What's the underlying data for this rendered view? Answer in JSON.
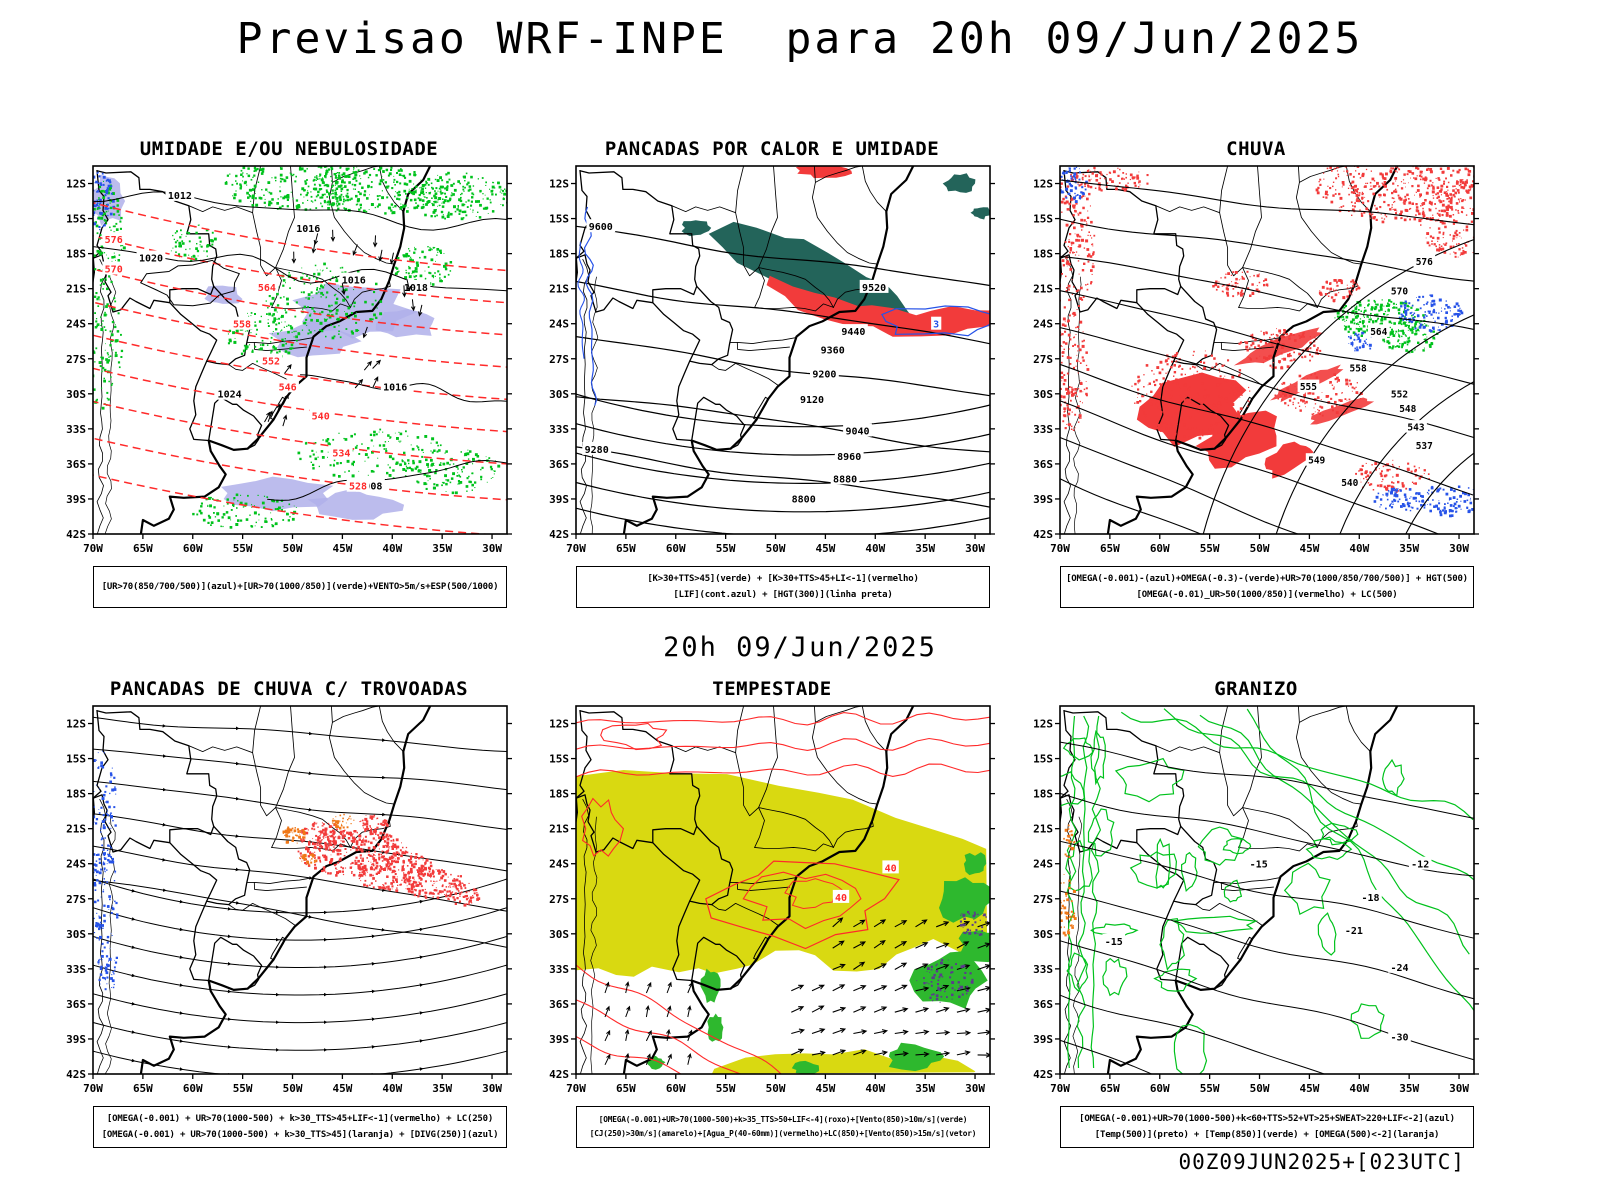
{
  "page": {
    "title": "Previsao WRF-INPE  para 20h 09/Jun/2025",
    "subtitle": "20h 09/Jun/2025",
    "footer": "00Z09JUN2025+[023UTC]"
  },
  "axes": {
    "lat_labels": [
      "12S",
      "15S",
      "18S",
      "21S",
      "24S",
      "27S",
      "30S",
      "33S",
      "36S",
      "39S",
      "42S"
    ],
    "lon_labels": [
      "70W",
      "65W",
      "60W",
      "55W",
      "50W",
      "45W",
      "40W",
      "35W",
      "30W"
    ]
  },
  "colors": {
    "green": "#00c21c",
    "green_med": "#2eb82e",
    "red": "#f23b3b",
    "red_line": "#ff2a2a",
    "blue": "#2753e8",
    "purple": "#b0b0ea",
    "teal": "#23645a",
    "yellow": "#d9d911",
    "orange": "#f07818"
  },
  "panels": [
    {
      "key": "umidade",
      "title": "UMIDADE E/OU NEBULOSIDADE",
      "caption": [
        "[UR>70(850/700/500)](azul)+[UR>70(1000/850)](verde)+VENTO>5m/s+ESP(500/1000)"
      ],
      "contour_labels_black": [
        "1012",
        "1016",
        "1020",
        "1016",
        "1018",
        "1024",
        "1016",
        "1008"
      ],
      "contour_labels_red": [
        "576",
        "570",
        "564",
        "558",
        "552",
        "546",
        "540",
        "534",
        "528"
      ]
    },
    {
      "key": "calor",
      "title": "PANCADAS POR CALOR E UMIDADE",
      "caption": [
        "[K>30+TTS>45](verde) + [K>30+TTS>45+LI<-1](vermelho)",
        "[LIF](cont.azul) + [HGT(300)](linha preta)"
      ],
      "contour_labels_black": [
        "9600",
        "9520",
        "9440",
        "9360",
        "9280",
        "9200",
        "9120",
        "9040",
        "8960",
        "8880",
        "8800"
      ],
      "contour_labels_blue": [
        "3"
      ]
    },
    {
      "key": "chuva",
      "title": "CHUVA",
      "caption": [
        "[OMEGA(-0.001)-(azul)+OMEGA(-0.3)-(verde)+UR>70(1000/850/700/500)] + HGT(500)",
        "[OMEGA(-0.01)_UR>50(1000/850)](vermelho) + LC(500)"
      ],
      "contour_labels_black": [
        "576",
        "570",
        "564",
        "558",
        "555",
        "552",
        "548",
        "543",
        "549",
        "537",
        "540"
      ]
    },
    {
      "key": "trovoadas",
      "title": "PANCADAS DE CHUVA C/ TROVOADAS",
      "caption": [
        "[OMEGA(-0.001) + UR>70(1000-500) + k>30_TTS>45+LIF<-1](vermelho) + LC(250)",
        "[OMEGA(-0.001) + UR>70(1000-500) + k>30_TTS>45](laranja) + [DIVG(250)](azul)"
      ]
    },
    {
      "key": "tempestade",
      "title": "TEMPESTADE",
      "caption": [
        "[OMEGA(-0.001)+UR>70(1000-500)+k>35_TTS>50+LIF<-4](roxo)+[Vento(850)>10m/s](verde)",
        "[CJ(250)>30m/s](amarelo)+[Agua_P(40-60mm)](vermelho)+LC(850)+[Vento(850)>15m/s](vetor)"
      ],
      "contour_labels_red": [
        "40",
        "40"
      ]
    },
    {
      "key": "granizo",
      "title": "GRANIZO",
      "caption": [
        "[OMEGA(-0.001)+UR>70(1000-500)+k<60+TTS>52+VT>25+SWEAT>220+LIF<-2](azul)",
        "[Temp(500)](preto) + [Temp(850)](verde) + [OMEGA(500)<-2](laranja)"
      ],
      "contour_labels_black": [
        "-12",
        "-15",
        "-18",
        "-21",
        "-24",
        "-30",
        "-15"
      ]
    }
  ]
}
